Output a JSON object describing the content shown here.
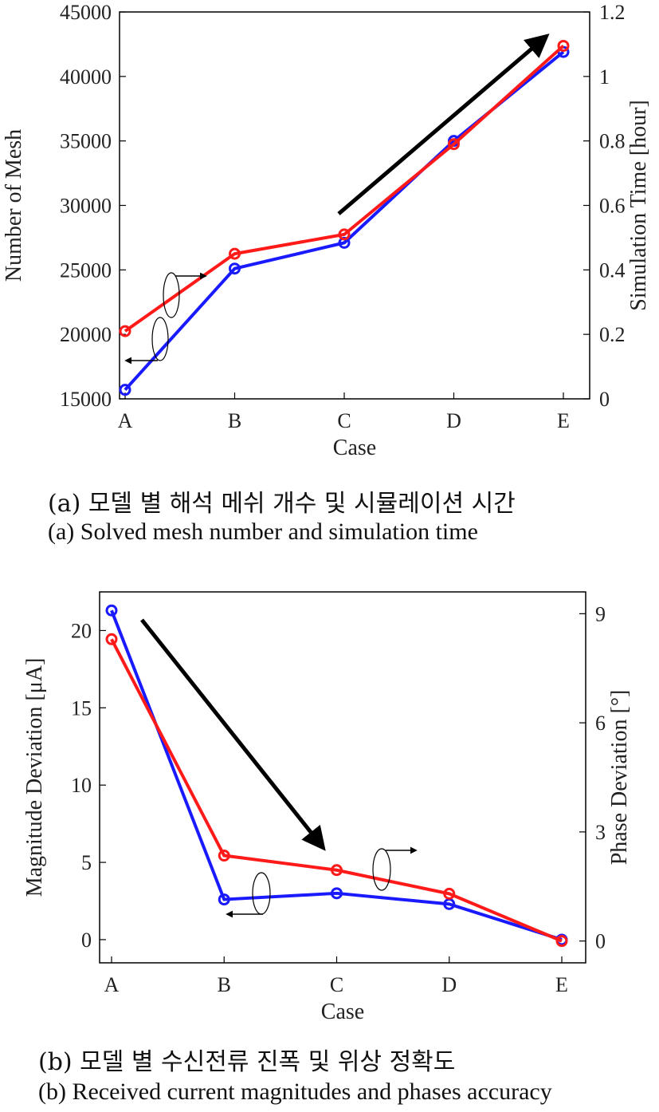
{
  "captions": {
    "a_ko": "(a) 모델 별 해석 메쉬 개수 및 시뮬레이션 시간",
    "a_en": "(a) Solved mesh number and simulation time",
    "b_ko": "(b) 모델 별 수신전류 진폭 및 위상 정확도",
    "b_en": "(b) Received current magnitudes and phases accuracy"
  },
  "chart_data": [
    {
      "type": "line",
      "categories": [
        "A",
        "B",
        "C",
        "D",
        "E"
      ],
      "xlabel": "Case",
      "ylabel_left": "Number of Mesh",
      "ylabel_right": "Simulation Time [hour]",
      "ylim_left": [
        15000,
        45000
      ],
      "ylim_right": [
        0,
        1.2
      ],
      "yticks_left": [
        "15000",
        "20000",
        "25000",
        "30000",
        "35000",
        "40000",
        "45000"
      ],
      "yticks_right": [
        "0",
        "0.2",
        "0.4",
        "0.6",
        "0.8",
        "1",
        "1.2"
      ],
      "series": [
        {
          "axis": "left",
          "color": "#1a1aff",
          "values": [
            15700,
            25100,
            27100,
            35000,
            41900
          ]
        },
        {
          "axis": "right",
          "color": "#ff1a1a",
          "values": [
            0.21,
            0.45,
            0.51,
            0.79,
            1.095
          ]
        }
      ],
      "annotations": {
        "trend_arrow": "up-right",
        "blue_series_axis_marker": "left",
        "red_series_axis_marker": "right"
      },
      "grid": false
    },
    {
      "type": "line",
      "categories": [
        "A",
        "B",
        "C",
        "D",
        "E"
      ],
      "xlabel": "Case",
      "ylabel_left": "Magnitude Deviation [μA]",
      "ylabel_right": "Phase Deviation [°]",
      "ylim_left": [
        -1.5,
        22.5
      ],
      "ylim_right": [
        -0.6,
        9.6
      ],
      "yticks_left": [
        "0",
        "5",
        "10",
        "15",
        "20"
      ],
      "yticks_right": [
        "0",
        "3",
        "6",
        "9"
      ],
      "series": [
        {
          "axis": "left",
          "color": "#1a1aff",
          "values": [
            21.3,
            2.6,
            3.0,
            2.3,
            0
          ]
        },
        {
          "axis": "right",
          "color": "#ff1a1a",
          "values": [
            8.3,
            2.35,
            1.95,
            1.3,
            0
          ]
        }
      ],
      "annotations": {
        "trend_arrow": "down-right",
        "blue_series_axis_marker": "left",
        "red_series_axis_marker": "right"
      },
      "grid": false
    }
  ]
}
